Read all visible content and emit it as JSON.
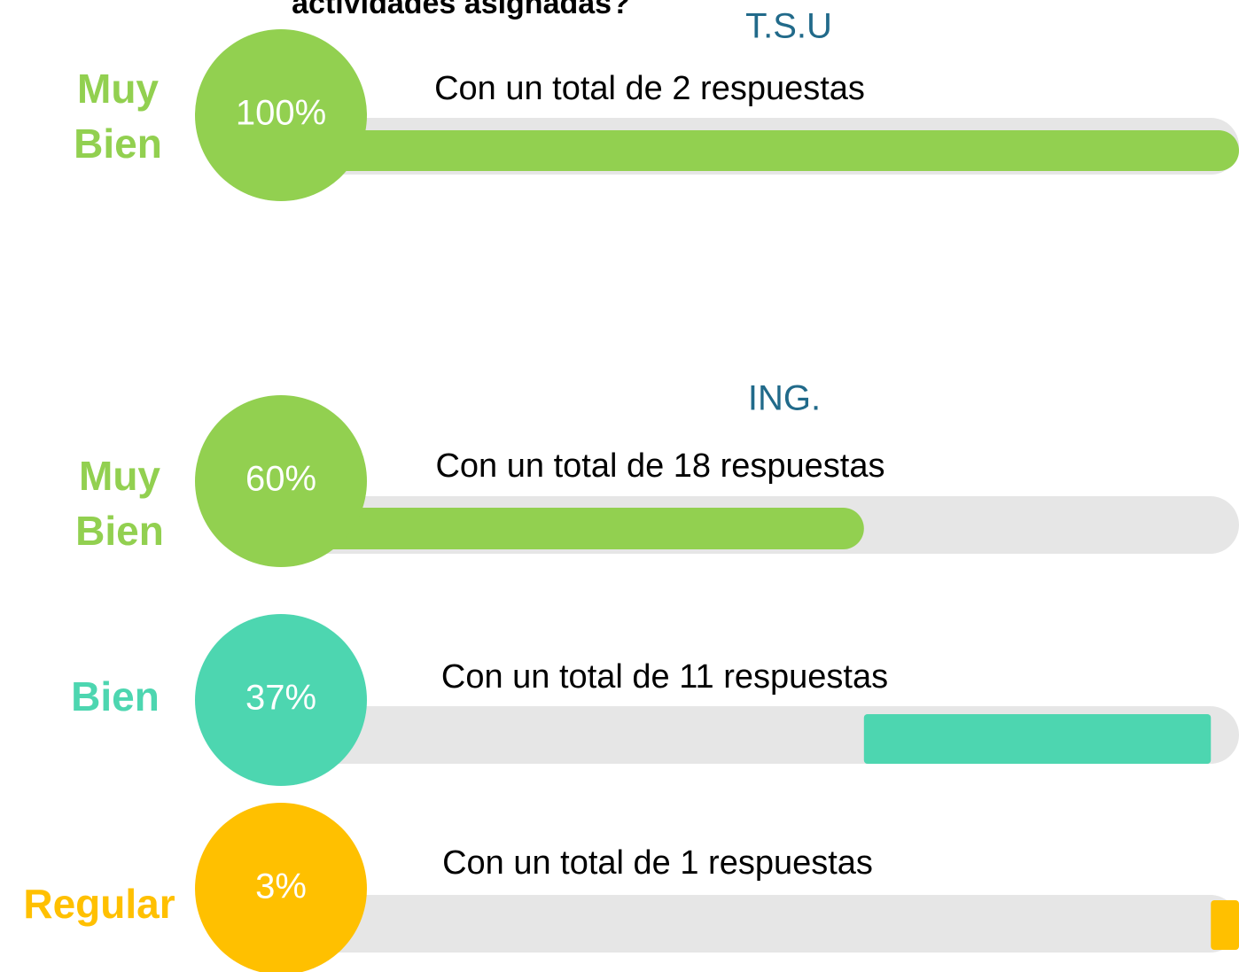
{
  "header": {
    "title": "actividades asignadas?"
  },
  "groups": [
    {
      "title": "T.S.U",
      "items": [
        {
          "label": "Muy Bien",
          "value": 100,
          "value_label": "100%",
          "text": "Con un total de 2 respuestas",
          "color": "#92d050"
        }
      ]
    },
    {
      "title": "ING.",
      "items": [
        {
          "label": "Muy Bien",
          "value": 60,
          "value_label": "60%",
          "text": "Con un total de 18 respuestas",
          "color": "#92d050"
        },
        {
          "label": "Bien",
          "value": 37,
          "value_label": "37%",
          "text": "Con un total de 11 respuestas",
          "color": "#4dd6b0"
        },
        {
          "label": "Regular",
          "value": 3,
          "value_label": "3%",
          "text": "Con un total de 1 respuestas",
          "color": "#ffc000"
        }
      ]
    }
  ]
}
